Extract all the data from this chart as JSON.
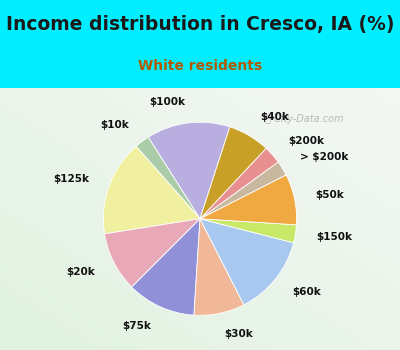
{
  "title": "Income distribution in Cresco, IA (%)",
  "subtitle": "White residents",
  "title_color": "#1a1a1a",
  "subtitle_color": "#b05a00",
  "bg_cyan": "#00eeff",
  "bg_box_top": "#e8f5ee",
  "bg_box_bottom": "#d0ead8",
  "watermark": "City-Data.com",
  "labels": [
    "$100k",
    "$10k",
    "$125k",
    "$20k",
    "$75k",
    "$30k",
    "$60k",
    "$150k",
    "$50k",
    "> $200k",
    "$200k",
    "$40k"
  ],
  "values": [
    14.0,
    2.5,
    16.0,
    10.0,
    11.5,
    8.5,
    13.5,
    3.0,
    8.5,
    2.5,
    3.0,
    7.0
  ],
  "colors": [
    "#b8aee0",
    "#aacca8",
    "#f0f0a0",
    "#e8a8b8",
    "#9090d8",
    "#f0b898",
    "#a8c8f0",
    "#c8e868",
    "#f0a840",
    "#c8b8a0",
    "#e89090",
    "#c8a028"
  ],
  "startangle": 72,
  "label_fontsize": 7.5,
  "title_fontsize": 13.5,
  "subtitle_fontsize": 10
}
